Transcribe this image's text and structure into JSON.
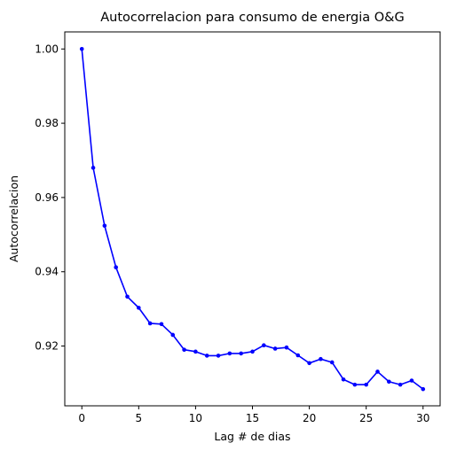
{
  "chart_data": {
    "type": "line",
    "title": "Autocorrelacion para consumo de energia O&G",
    "xlabel": "Lag # de dias",
    "ylabel": "Autocorrelacion",
    "xlim": [
      -1.5,
      31.5
    ],
    "ylim": [
      0.9039,
      1.0046
    ],
    "x_ticks": [
      0,
      5,
      10,
      15,
      20,
      25,
      30
    ],
    "x_tick_labels": [
      "0",
      "5",
      "10",
      "15",
      "20",
      "25",
      "30"
    ],
    "y_ticks": [
      0.92,
      0.94,
      0.96,
      0.98,
      1.0
    ],
    "y_tick_labels": [
      "0.92",
      "0.94",
      "0.96",
      "0.98",
      "1.00"
    ],
    "grid": false,
    "legend": "none",
    "series": [
      {
        "color": "#0000ff",
        "marker": "dot",
        "x": [
          0,
          1,
          2,
          3,
          4,
          5,
          6,
          7,
          8,
          9,
          10,
          11,
          12,
          13,
          14,
          15,
          16,
          17,
          18,
          19,
          20,
          21,
          22,
          23,
          24,
          25,
          26,
          27,
          28,
          29,
          30
        ],
        "values": [
          1.0,
          0.968,
          0.9524,
          0.9412,
          0.9333,
          0.9303,
          0.9261,
          0.9259,
          0.923,
          0.919,
          0.9185,
          0.9174,
          0.9174,
          0.918,
          0.918,
          0.9185,
          0.9202,
          0.9193,
          0.9196,
          0.9175,
          0.9154,
          0.9165,
          0.9156,
          0.911,
          0.9096,
          0.9096,
          0.9131,
          0.9104,
          0.9096,
          0.9107,
          0.9084
        ]
      }
    ]
  }
}
